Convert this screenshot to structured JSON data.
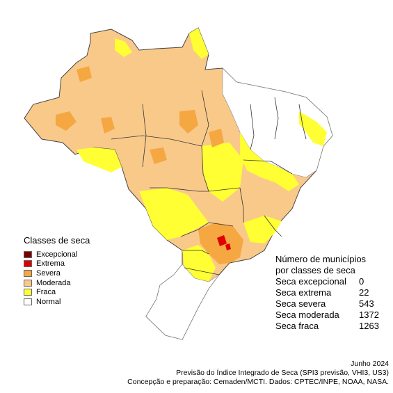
{
  "legend": {
    "title": "Classes de seca",
    "items": [
      {
        "label": "Excepcional",
        "color": "#7a0000"
      },
      {
        "label": "Extrema",
        "color": "#e00000"
      },
      {
        "label": "Severa",
        "color": "#f5a742"
      },
      {
        "label": "Moderada",
        "color": "#f9c98a"
      },
      {
        "label": "Fraca",
        "color": "#ffff33"
      },
      {
        "label": "Normal",
        "color": "#ffffff"
      }
    ]
  },
  "counts": {
    "title_line1": "Número de municípios",
    "title_line2": "por classes de seca",
    "rows": [
      {
        "label": "Seca excepcional",
        "value": "0"
      },
      {
        "label": "Seca extrema",
        "value": "22"
      },
      {
        "label": "Seca severa",
        "value": "543"
      },
      {
        "label": "Seca moderada",
        "value": "1372"
      },
      {
        "label": "Seca fraca",
        "value": "1263"
      }
    ]
  },
  "footer": {
    "date": "Junho 2024",
    "line1": "Previsão do Índice Integrado de Seca (SPI3 previsão, VHI3, US3)",
    "line2": "Concepção e preparação: Cemaden/MCTI. Dados: CPTEC/INPE, NOAA, NASA."
  }
}
